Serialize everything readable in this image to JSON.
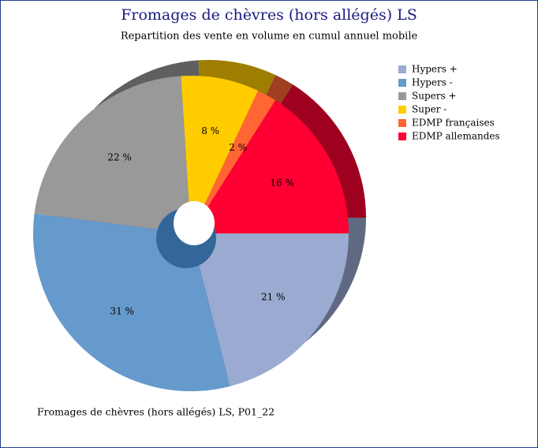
{
  "chart_data": {
    "type": "pie",
    "title": "Fromages de chèvres (hors allégés) LS",
    "subtitle": "Repartition des vente en volume en cumul annuel mobile",
    "caption": "Fromages de chèvres (hors allégés) LS, P01_22",
    "categories": [
      "Hypers +",
      "Hypers -",
      "Supers +",
      "Super -",
      "EDMP françaises",
      "EDMP allemandes"
    ],
    "values": [
      21,
      31,
      22,
      8,
      2,
      16
    ],
    "value_labels": [
      "21 %",
      "31 %",
      "22 %",
      "8 %",
      "2 %",
      "16 %"
    ],
    "colors": [
      "#9aaad0",
      "#6699cc",
      "#999999",
      "#ffcc00",
      "#ff6633",
      "#ff0033"
    ],
    "legend": "right"
  }
}
